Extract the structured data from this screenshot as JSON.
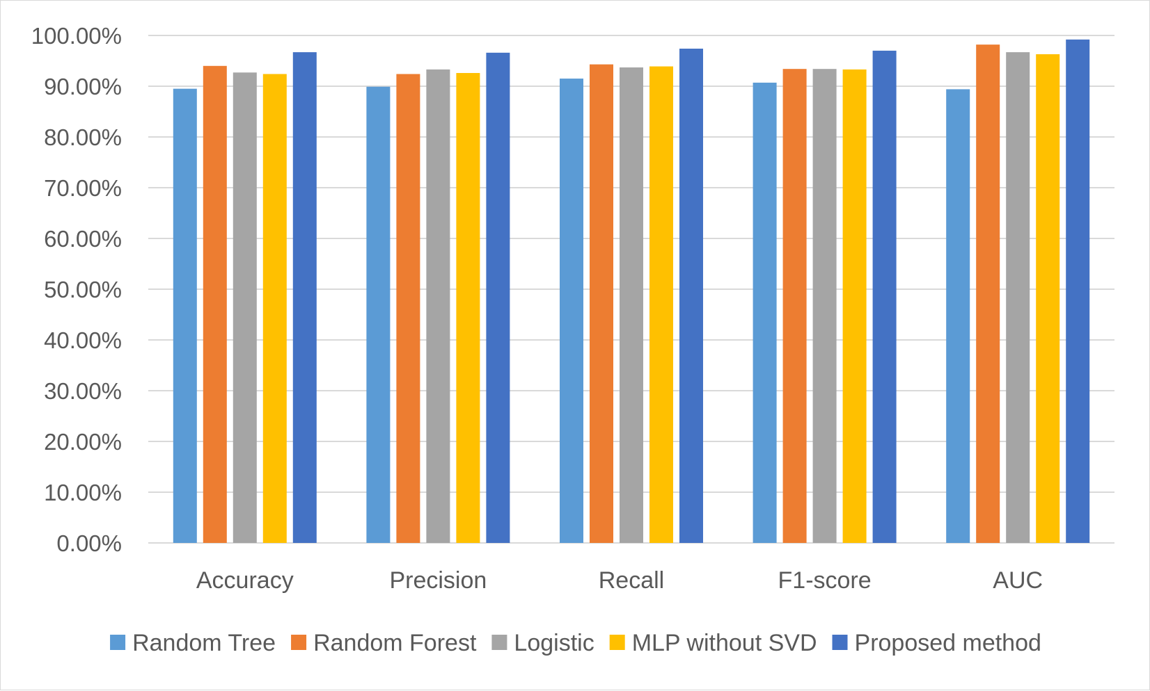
{
  "chart_data": {
    "type": "bar",
    "categories": [
      "Accuracy",
      "Precision",
      "Recall",
      "F1-score",
      "AUC"
    ],
    "series": [
      {
        "name": "Random Tree",
        "color": "#5B9BD5",
        "values": [
          89.5,
          89.9,
          91.5,
          90.7,
          89.4
        ]
      },
      {
        "name": "Random Forest",
        "color": "#ED7D31",
        "values": [
          94.0,
          92.4,
          94.3,
          93.4,
          98.2
        ]
      },
      {
        "name": "Logistic",
        "color": "#A5A5A5",
        "values": [
          92.7,
          93.3,
          93.7,
          93.4,
          96.7
        ]
      },
      {
        "name": "MLP without SVD",
        "color": "#FFC000",
        "values": [
          92.4,
          92.6,
          93.9,
          93.3,
          96.3
        ]
      },
      {
        "name": "Proposed method",
        "color": "#4472C4",
        "values": [
          96.7,
          96.6,
          97.4,
          97.0,
          99.2
        ]
      }
    ],
    "ylim": [
      0,
      100
    ],
    "yticks": [
      "0.00%",
      "10.00%",
      "20.00%",
      "30.00%",
      "40.00%",
      "50.00%",
      "60.00%",
      "70.00%",
      "80.00%",
      "90.00%",
      "100.00%"
    ],
    "title": "",
    "xlabel": "",
    "ylabel": "",
    "grid": true,
    "legend_position": "bottom"
  }
}
